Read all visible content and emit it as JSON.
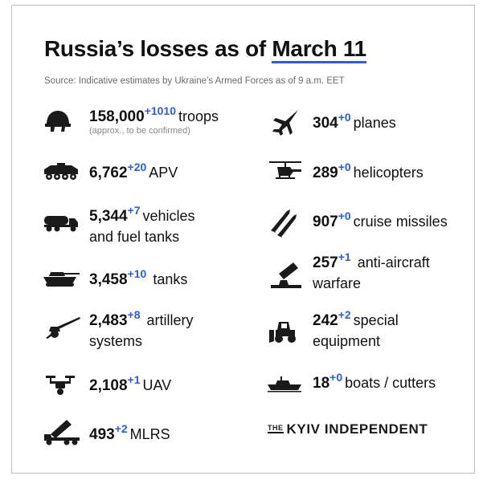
{
  "title": {
    "prefix": "Russia’s losses as of ",
    "date": "March 11"
  },
  "source": "Source: Indicative estimates by Ukraine’s Armed Forces as of 9 a.m. EET",
  "left_items": [
    {
      "icon": "helmet-icon",
      "value": "158,000",
      "delta": "+1010",
      "label": "troops",
      "note": "(approx., to be confirmed)"
    },
    {
      "icon": "apv-icon",
      "value": "6,762",
      "delta": "+20",
      "label": "APV"
    },
    {
      "icon": "fuel-truck-icon",
      "value": "5,344",
      "delta": "+7",
      "label": "vehicles",
      "label2": "and fuel tanks"
    },
    {
      "icon": "tank-icon",
      "value": "3,458",
      "delta": "+10",
      "label": "tanks"
    },
    {
      "icon": "artillery-icon",
      "value": "2,483",
      "delta": "+8",
      "label": "artillery",
      "label2": "systems"
    },
    {
      "icon": "drone-icon",
      "value": "2,108",
      "delta": "+1",
      "label": "UAV"
    },
    {
      "icon": "mlrs-icon",
      "value": "493",
      "delta": "+2",
      "label": "MLRS"
    }
  ],
  "right_items": [
    {
      "icon": "plane-icon",
      "value": "304",
      "delta": "+0",
      "label": "planes"
    },
    {
      "icon": "helicopter-icon",
      "value": "289",
      "delta": "+0",
      "label": "helicopters"
    },
    {
      "icon": "missile-icon",
      "value": "907",
      "delta": "+0",
      "label": "cruise missiles"
    },
    {
      "icon": "anti-aircraft-icon",
      "value": "257",
      "delta": "+1",
      "label": "anti-aircraft",
      "label2": "warfare"
    },
    {
      "icon": "bulldozer-icon",
      "value": "242",
      "delta": "+2",
      "label": "special",
      "label2": "equipment"
    },
    {
      "icon": "boat-icon",
      "value": "18",
      "delta": "+0",
      "label": "boats / cutters"
    }
  ],
  "brand": {
    "the": "THE",
    "name": "KYIV INDEPENDENT"
  },
  "colors": {
    "accent": "#2f5dd9",
    "text": "#111111",
    "muted": "#6a6a6a"
  }
}
